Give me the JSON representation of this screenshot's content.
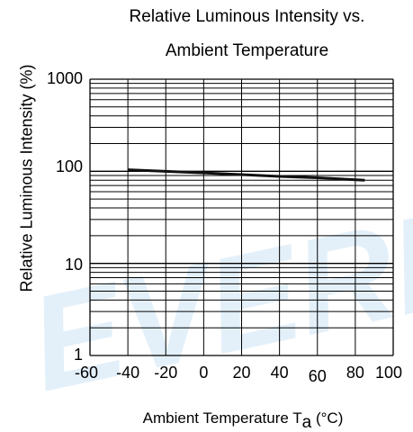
{
  "chart_data": {
    "type": "line",
    "title_line1": "Relative Luminous Intensity vs.",
    "title_line2": "Ambient Temperature",
    "ylabel": "Relative Luminous Intensity  (%)",
    "xlabel_prefix": "Ambient Temperature T",
    "xlabel_sub": "a",
    "xlabel_suffix": " (°C)",
    "xlim": [
      -60,
      100
    ],
    "ylim": [
      1,
      1000
    ],
    "yscale": "log",
    "grid": true,
    "xticks": [
      "-60",
      "-40",
      "-20",
      "0",
      "20",
      "40",
      "60",
      "80",
      "100"
    ],
    "yticks": [
      "1000",
      "100",
      "10",
      "1"
    ],
    "series": [
      {
        "x": [
          -40,
          -20,
          0,
          20,
          40,
          60,
          85
        ],
        "y": [
          104,
          100,
          96,
          92,
          88,
          85,
          80
        ]
      }
    ]
  },
  "watermark_text": "EVERLIGHT",
  "colors": {
    "line": "#111111",
    "grid": "#000000",
    "watermark": "#e3f0fa"
  }
}
